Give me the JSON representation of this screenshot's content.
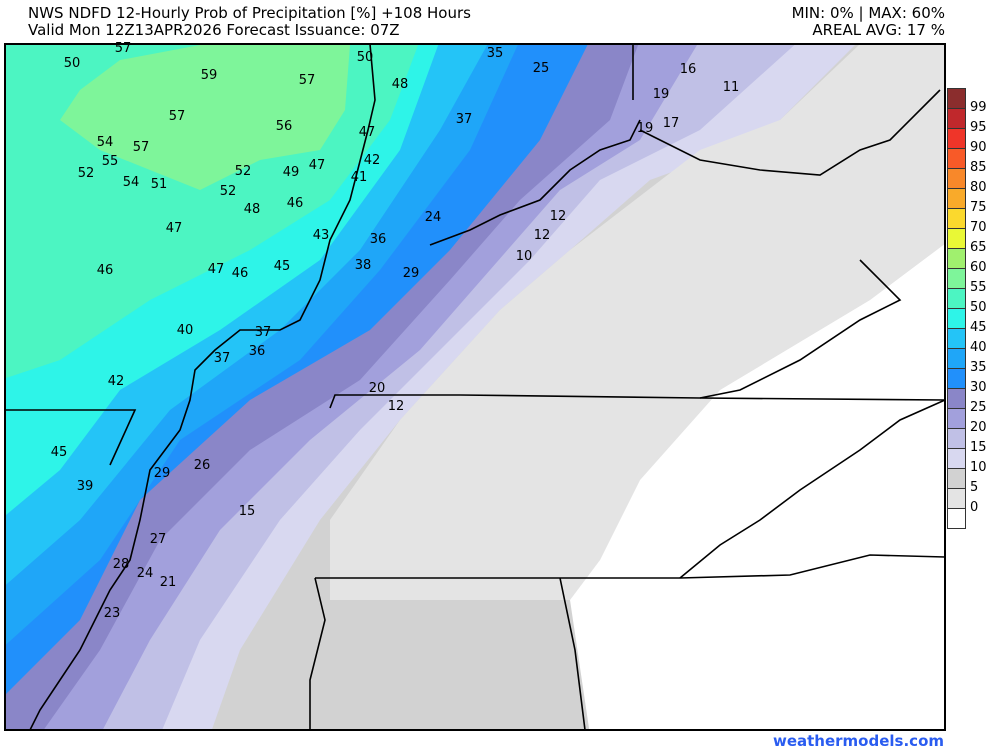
{
  "header": {
    "title": "NWS NDFD 12-Hourly Prob of Precipitation [%] +108 Hours",
    "valid": "Valid Mon 12Z13APR2026   Forecast Issuance: 07Z",
    "minmax": "MIN: 0% | MAX: 60%",
    "areal_avg": "AREAL AVG: 17 %"
  },
  "legend": {
    "labels": [
      "99",
      "95",
      "90",
      "85",
      "80",
      "75",
      "70",
      "65",
      "60",
      "55",
      "50",
      "45",
      "40",
      "35",
      "30",
      "25",
      "20",
      "15",
      "10",
      "5",
      "0"
    ],
    "colors": [
      "#8b2d2d",
      "#c0282c",
      "#ef3529",
      "#f85a28",
      "#f8882a",
      "#f9aa2a",
      "#fbd92d",
      "#e9f836",
      "#a0f06e",
      "#7ef59a",
      "#4cf5c2",
      "#2ef4e8",
      "#24c4f7",
      "#1fa6f8",
      "#2190fb",
      "#8a86c8",
      "#a2a0dc",
      "#c0c0e6",
      "#d8d8f0",
      "#d2d2d2",
      "#e4e4e4",
      "#ffffff"
    ]
  },
  "map": {
    "point_values": [
      "57",
      "50",
      "59",
      "57",
      "50",
      "35",
      "25",
      "16",
      "11",
      "48",
      "19",
      "57",
      "56",
      "37",
      "47",
      "19",
      "17",
      "54",
      "57",
      "55",
      "52",
      "54",
      "51",
      "52",
      "49",
      "47",
      "42",
      "41",
      "52",
      "48",
      "46",
      "24",
      "12",
      "12",
      "47",
      "43",
      "36",
      "10",
      "46",
      "47",
      "46",
      "45",
      "38",
      "29",
      "40",
      "37",
      "36",
      "37",
      "42",
      "20",
      "12",
      "45",
      "29",
      "26",
      "39",
      "15",
      "27",
      "28",
      "24",
      "21",
      "23"
    ]
  },
  "footer": {
    "credit": "weathermodels.com"
  }
}
